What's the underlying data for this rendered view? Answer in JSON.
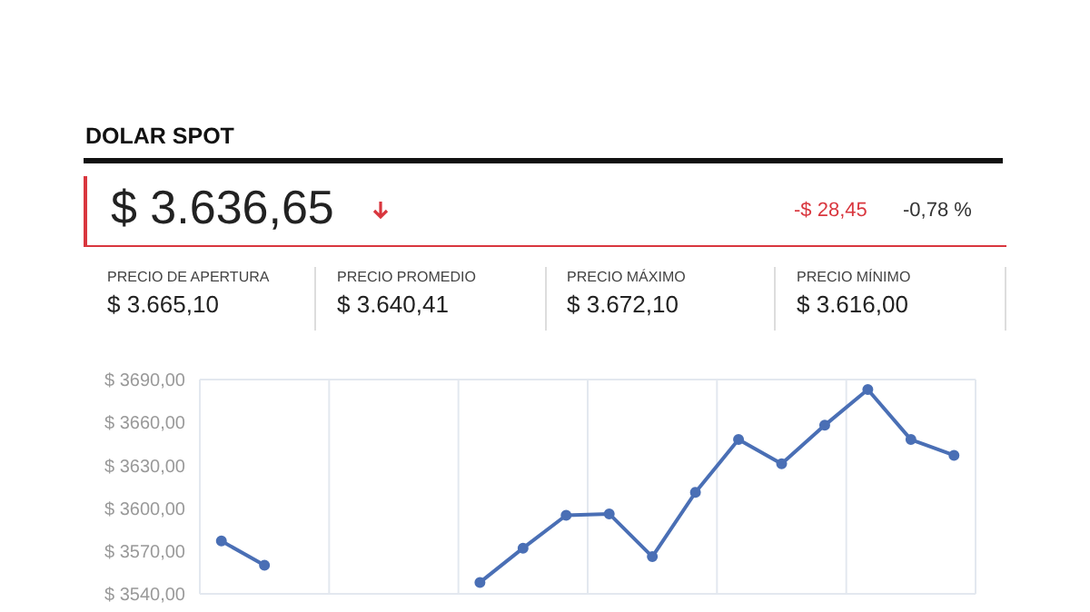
{
  "chart_data": {
    "type": "line",
    "title": "DOLAR SPOT",
    "subtitle": "$ 3.636,65",
    "annotations": [
      "-$ 28,45",
      "-0,78 %",
      "PRECIO DE APERTURA",
      "$ 3.665,10",
      "PRECIO PROMEDIO",
      "$ 3.640,41",
      "PRECIO MÁXIMO",
      "$ 3.672,10",
      "PRECIO MÍNIMO",
      "$ 3.616,00"
    ],
    "categories": [
      null,
      null,
      null,
      null,
      null,
      null,
      null,
      null,
      null,
      null,
      null,
      null,
      null,
      null,
      null,
      null,
      null,
      null
    ],
    "series": [
      {
        "color": "#4a6fb5",
        "values": [
          3577,
          3560,
          null,
          null,
          null,
          null,
          null,
          null,
          null,
          null,
          null,
          null,
          null,
          null,
          null,
          null,
          null,
          null
        ]
      },
      {
        "color": "#4a6fb5",
        "values": [
          null,
          null,
          null,
          null,
          null,
          null,
          3548,
          3572,
          3595,
          3596,
          3566,
          3611,
          3648,
          3631,
          3658,
          3683,
          3648,
          3637
        ]
      }
    ],
    "ylim": [
      3540,
      3690
    ],
    "yticks": [
      {
        "value": 3540,
        "label": "$ 3540,00"
      },
      {
        "value": 3570,
        "label": "$ 3570,00"
      },
      {
        "value": 3600,
        "label": "$ 3600,00"
      },
      {
        "value": 3630,
        "label": "$ 3630,00"
      },
      {
        "value": 3660,
        "label": "$ 3660,00"
      },
      {
        "value": 3690,
        "label": "$ 3690,00"
      }
    ],
    "tick_labels": "y",
    "grid": true,
    "marker": "circle",
    "line_style": "solid",
    "legend": false
  }
}
